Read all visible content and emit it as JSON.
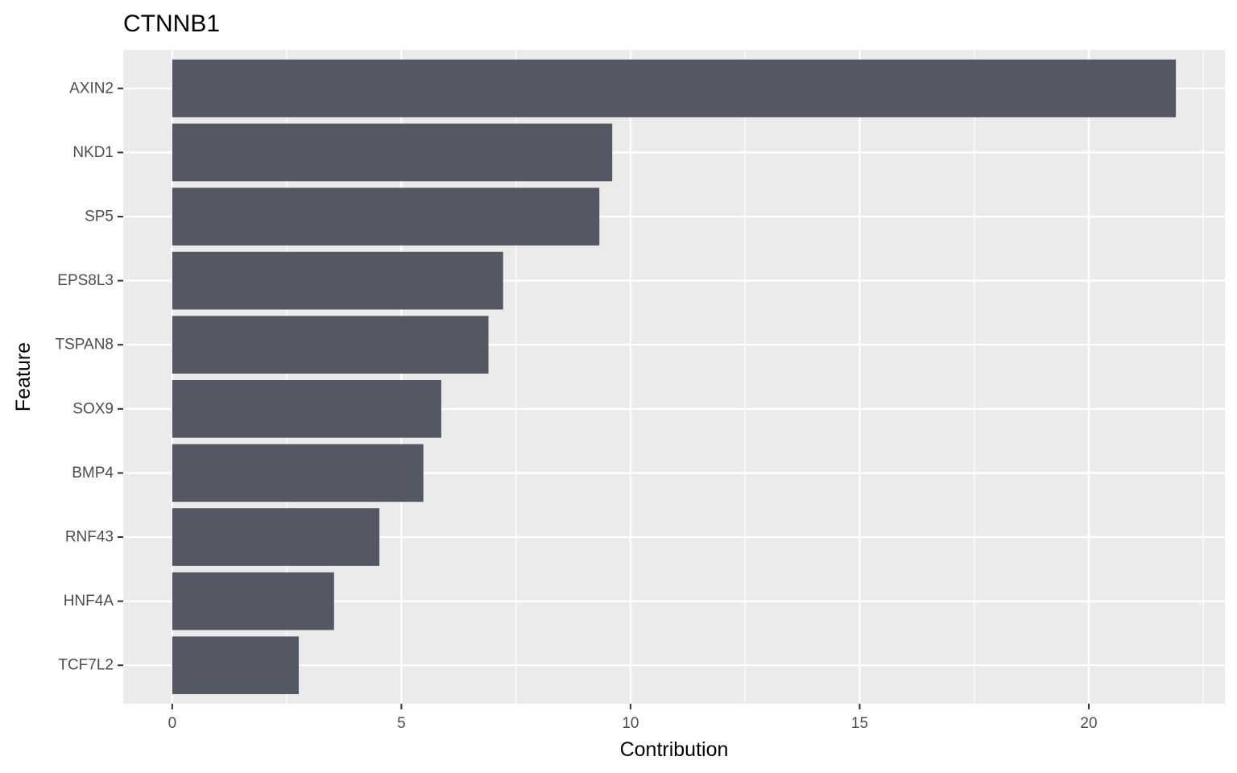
{
  "chart_data": {
    "type": "bar",
    "orientation": "horizontal",
    "title": "CTNNB1",
    "xlabel": "Contribution",
    "ylabel": "Feature",
    "categories": [
      "AXIN2",
      "NKD1",
      "SP5",
      "EPS8L3",
      "TSPAN8",
      "SOX9",
      "BMP4",
      "RNF43",
      "HNF4A",
      "TCF7L2"
    ],
    "values": [
      21.9,
      9.6,
      9.32,
      7.22,
      6.9,
      5.87,
      5.48,
      4.52,
      3.53,
      2.76
    ],
    "xticks": [
      "0",
      "5",
      "10",
      "15",
      "20"
    ],
    "xlim": [
      -1.07,
      22.97
    ],
    "grid": true,
    "legend": "none",
    "colors": {
      "bar": "#535862",
      "panel_background": "#ebebeb",
      "grid": "#ffffff",
      "tick": "#333333",
      "tick_text": "#4d4d4d"
    }
  }
}
